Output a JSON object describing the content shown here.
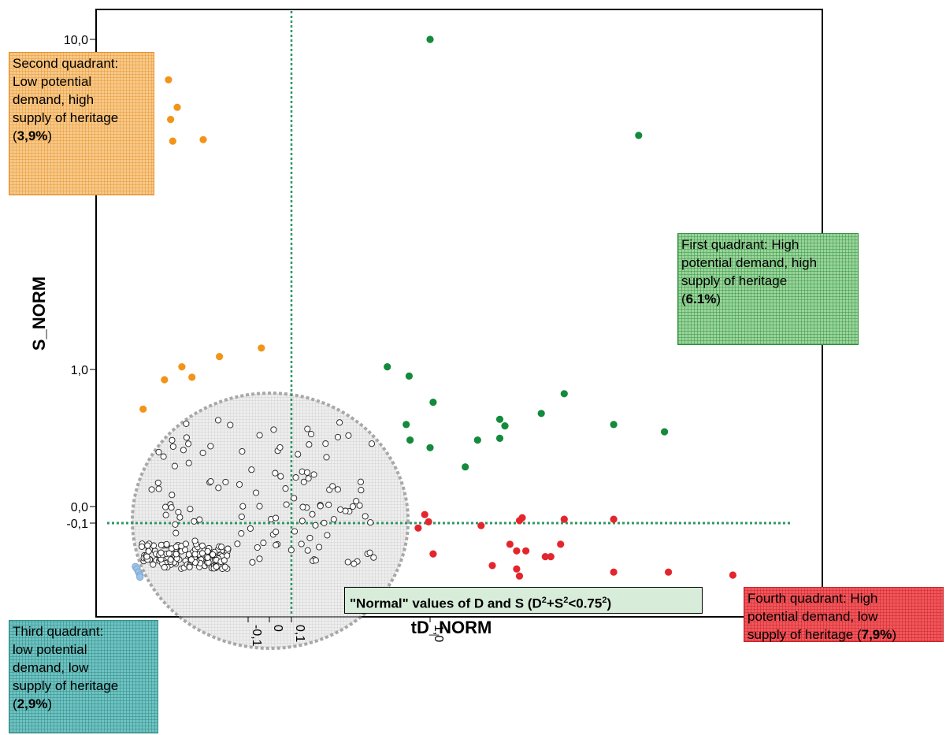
{
  "chart_data": {
    "type": "scatter",
    "xlabel": "tD_NORM",
    "ylabel": "S_NORM",
    "x_ticks": [
      "-0,1",
      "0",
      "0,1",
      "1,0"
    ],
    "y_ticks": [
      "10,0",
      "1,0",
      "0,0",
      "-0,1"
    ],
    "thresholds": {
      "x": 0.1,
      "y": -0.1
    },
    "normal_region": {
      "text_main": "\"Normal\" values of D and S (D",
      "text_sup1": "2",
      "text_mid": "+S",
      "text_sup2": "2",
      "text_tail": "<0.75",
      "text_sup3": "2",
      "text_end": ")"
    },
    "colors": {
      "first": "#138a3c",
      "second": "#f29418",
      "third": "#9ec3e6",
      "fourth": "#e3262e",
      "normal": "#ffffff",
      "threshold": "#2f9860"
    },
    "quadrants": [
      {
        "id": "second",
        "lines": [
          "Second quadrant:",
          "Low potential",
          "demand, high",
          "supply of heritage"
        ],
        "pct_open": "(",
        "pct": "3,9%",
        "pct_close": ")"
      },
      {
        "id": "first",
        "lines": [
          "First quadrant: High",
          "potential demand, high",
          "supply of heritage"
        ],
        "pct_open": "(",
        "pct": "6.1%",
        "pct_close": ")"
      },
      {
        "id": "third",
        "lines": [
          "Third quadrant:",
          "low potential",
          "demand, low",
          "supply of heritage"
        ],
        "pct_open": "(",
        "pct": "2,9%",
        "pct_close": ")"
      },
      {
        "id": "fourth",
        "lines": [
          "Fourth quadrant: High",
          "potential demand, low",
          "supply of heritage"
        ],
        "pct_open": "(",
        "pct": "7,9%",
        "pct_close": ")"
      }
    ],
    "series": [
      {
        "group": "first",
        "points": [
          [
            1.0,
            10.0
          ],
          [
            3.6,
            5.2
          ],
          [
            0.55,
            1.02
          ],
          [
            0.75,
            0.88
          ],
          [
            1.02,
            0.52
          ],
          [
            2.3,
            0.62
          ],
          [
            0.72,
            0.32
          ],
          [
            1.55,
            0.36
          ],
          [
            1.6,
            0.31
          ],
          [
            0.76,
            0.22
          ],
          [
            1.0,
            0.18
          ],
          [
            1.35,
            0.22
          ],
          [
            1.55,
            0.23
          ],
          [
            1.25,
            0.1
          ],
          [
            2.0,
            0.41
          ],
          [
            3.1,
            0.32
          ],
          [
            4.2,
            0.27
          ]
        ]
      },
      {
        "group": "second",
        "points": [
          [
            -0.36,
            7.6
          ],
          [
            -0.32,
            6.3
          ],
          [
            -0.35,
            5.8
          ],
          [
            -0.34,
            5.0
          ],
          [
            -0.22,
            5.05
          ],
          [
            -0.3,
            1.02
          ],
          [
            -0.17,
            1.1
          ],
          [
            -0.03,
            1.17
          ],
          [
            -0.26,
            0.86
          ],
          [
            -0.38,
            0.82
          ],
          [
            -0.5,
            0.45
          ]
        ]
      },
      {
        "group": "third",
        "points": [
          [
            -0.55,
            -0.36
          ],
          [
            -0.54,
            -0.38
          ],
          [
            -0.53,
            -0.41
          ],
          [
            -0.52,
            -0.44
          ],
          [
            -0.52,
            -0.46
          ]
        ]
      },
      {
        "group": "fourth",
        "points": [
          [
            0.93,
            -0.04
          ],
          [
            0.98,
            -0.09
          ],
          [
            1.38,
            -0.11
          ],
          [
            1.75,
            -0.08
          ],
          [
            1.78,
            -0.06
          ],
          [
            2.3,
            -0.07
          ],
          [
            3.1,
            -0.07
          ],
          [
            0.85,
            -0.12
          ],
          [
            1.02,
            -0.26
          ],
          [
            1.65,
            -0.2
          ],
          [
            1.72,
            -0.24
          ],
          [
            1.82,
            -0.24
          ],
          [
            2.05,
            -0.28
          ],
          [
            2.12,
            -0.28
          ],
          [
            2.25,
            -0.2
          ],
          [
            1.48,
            -0.35
          ],
          [
            1.72,
            -0.38
          ],
          [
            1.75,
            -0.45
          ],
          [
            3.1,
            -0.41
          ],
          [
            4.3,
            -0.41
          ],
          [
            6.3,
            -0.44
          ]
        ]
      }
    ]
  }
}
